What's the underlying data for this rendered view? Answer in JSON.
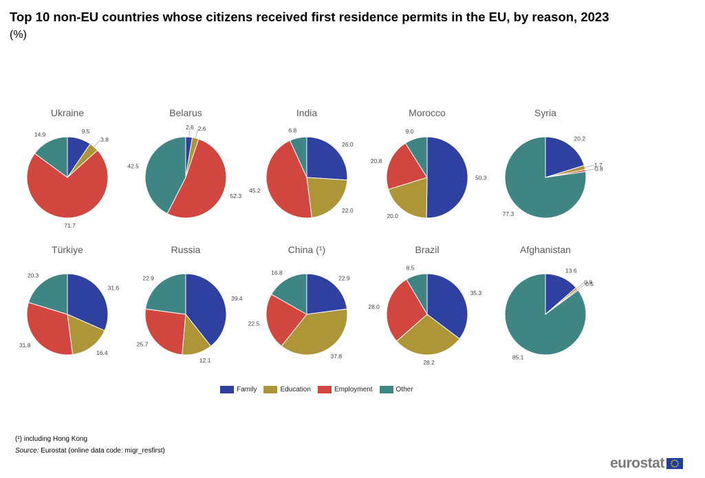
{
  "header": {
    "title": "Top 10 non-EU countries whose citizens received first residence permits in the EU, by reason, 2023",
    "subtitle": "(%)"
  },
  "legend": {
    "items": [
      {
        "label": "Family",
        "color": "#2e41a0"
      },
      {
        "label": "Education",
        "color": "#ae9537"
      },
      {
        "label": "Employment",
        "color": "#d1463f"
      },
      {
        "label": "Other",
        "color": "#3f8583"
      }
    ]
  },
  "footer": {
    "footnote": "(¹) including Hong Kong",
    "source_label": "Source:",
    "source_text": "Eurostat (online data code: migr_resfirst)",
    "logo_text": "eurostat"
  },
  "chart_data": {
    "type": "pie",
    "categories": [
      "Family",
      "Education",
      "Employment",
      "Other"
    ],
    "colors": [
      "#2e41a0",
      "#ae9537",
      "#d1463f",
      "#3f8583"
    ],
    "pies": [
      {
        "name": "Ukraine",
        "values": [
          9.5,
          3.8,
          71.7,
          14.9
        ]
      },
      {
        "name": "Belarus",
        "values": [
          2.6,
          2.6,
          52.3,
          42.5
        ]
      },
      {
        "name": "India",
        "values": [
          26.0,
          22.0,
          45.2,
          6.8
        ]
      },
      {
        "name": "Morocco",
        "values": [
          50.3,
          20.0,
          20.8,
          9.0
        ]
      },
      {
        "name": "Syria",
        "values": [
          20.2,
          1.7,
          0.8,
          77.3
        ]
      },
      {
        "name": "Türkiye",
        "values": [
          31.6,
          16.4,
          31.8,
          20.3
        ]
      },
      {
        "name": "Russia",
        "values": [
          39.4,
          12.1,
          25.7,
          22.9
        ]
      },
      {
        "name": "China (¹)",
        "values": [
          22.9,
          37.8,
          22.5,
          16.8
        ]
      },
      {
        "name": "Brazil",
        "values": [
          35.3,
          28.2,
          28.0,
          8.5
        ]
      },
      {
        "name": "Afghanistan",
        "values": [
          13.6,
          0.8,
          0.5,
          85.1
        ]
      }
    ],
    "value_labels": [
      [
        "9.5",
        "3.8",
        "71.7",
        "14.9"
      ],
      [
        "2.6",
        "2.6",
        "52.3",
        "42.5"
      ],
      [
        "26.0",
        "22.0",
        "45.2",
        "6.8"
      ],
      [
        "50.3",
        "20.0",
        "20.8",
        "9.0"
      ],
      [
        "20.2",
        "1.7",
        "0.8",
        "77.3"
      ],
      [
        "31.6",
        "16.4",
        "31.8",
        "20.3"
      ],
      [
        "39.4",
        "12.1",
        "25.7",
        "22.9"
      ],
      [
        "22.9",
        "37.8",
        "22.5",
        "16.8"
      ],
      [
        "35.3",
        "28.2",
        "28.0",
        "8.5"
      ],
      [
        "13.6",
        "0.8",
        "0.5",
        "85.1"
      ]
    ],
    "legend_position": "bottom"
  }
}
